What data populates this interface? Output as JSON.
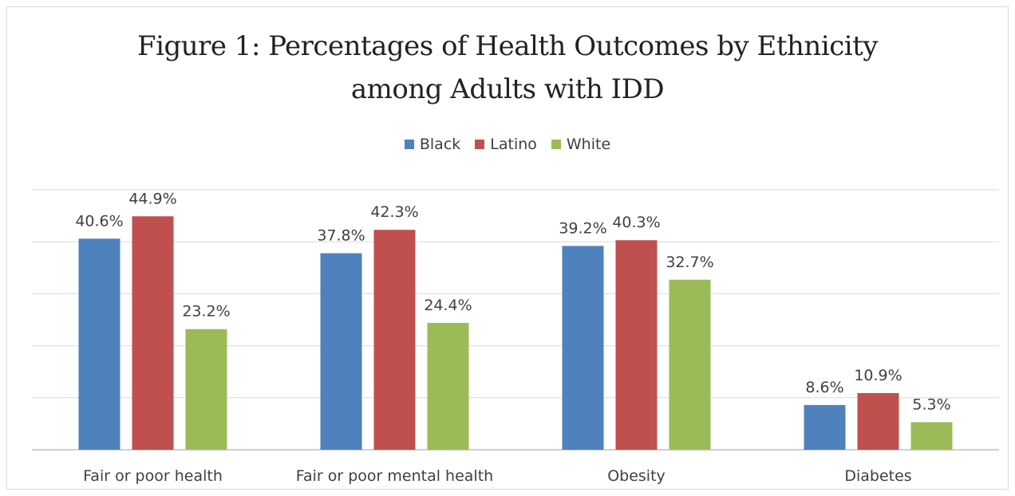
{
  "chart_data": {
    "type": "bar",
    "title": "Figure 1: Percentages of Health Outcomes by Ethnicity among Adults with IDD",
    "title_lines": [
      "Figure 1: Percentages of Health Outcomes by Ethnicity",
      "among Adults with IDD"
    ],
    "categories": [
      "Fair or poor health",
      "Fair or poor mental health",
      "Obesity",
      "Diabetes"
    ],
    "series": [
      {
        "name": "Black",
        "color": "#4f81bd",
        "values": [
          40.6,
          37.8,
          39.2,
          8.6
        ],
        "labels": [
          "40.6%",
          "37.8%",
          "39.2%",
          "8.6%"
        ]
      },
      {
        "name": "Latino",
        "color": "#c0504d",
        "values": [
          44.9,
          42.3,
          40.3,
          10.9
        ],
        "labels": [
          "44.9%",
          "42.3%",
          "40.3%",
          "10.9%"
        ]
      },
      {
        "name": "White",
        "color": "#9bbb59",
        "values": [
          23.2,
          24.4,
          32.7,
          5.3
        ],
        "labels": [
          "23.2%",
          "24.4%",
          "32.7%",
          "5.3%"
        ]
      }
    ],
    "ylim": [
      0,
      50
    ],
    "grid": true,
    "legend_position": "top"
  }
}
